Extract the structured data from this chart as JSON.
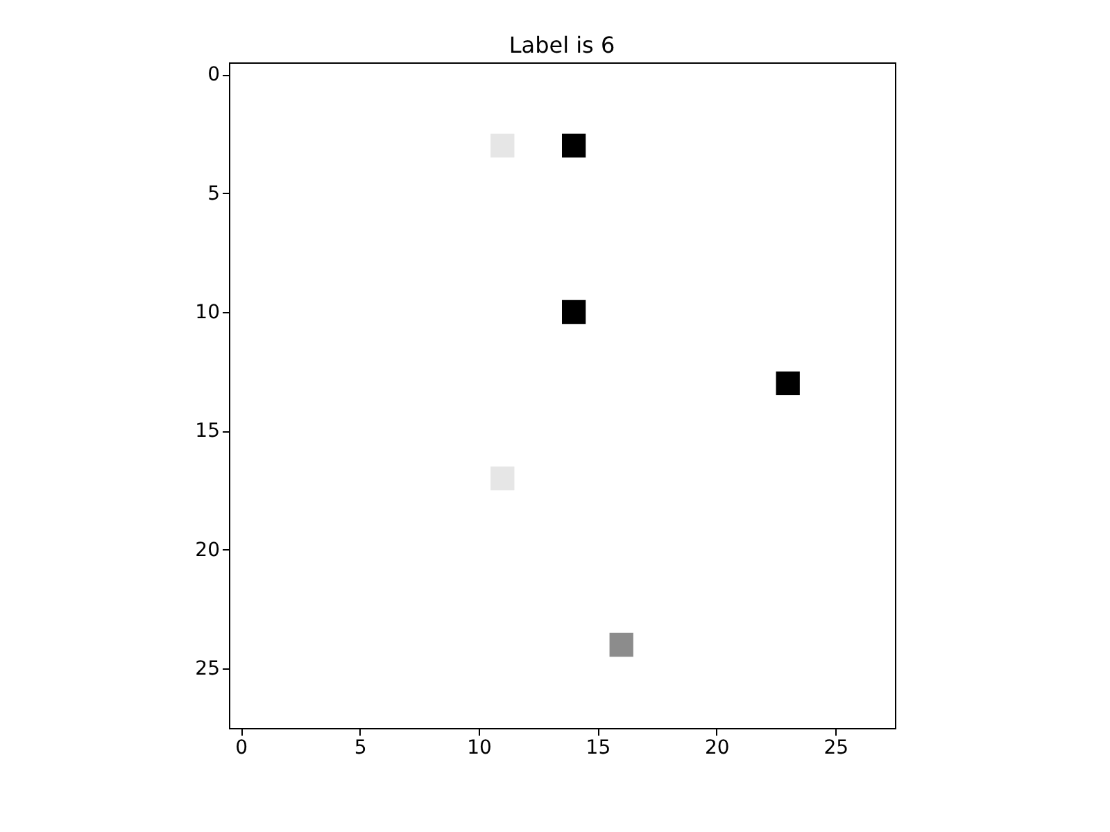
{
  "chart_data": {
    "type": "scatter",
    "title": "Label is 6",
    "x": [
      11,
      14,
      14,
      23,
      11,
      16
    ],
    "values": [
      3,
      3,
      10,
      13,
      17,
      24
    ],
    "colors": [
      "#e6e6e6",
      "#000000",
      "#000000",
      "#000000",
      "#e6e6e6",
      "#8c8c8c"
    ],
    "marker": "square",
    "xlim": [
      -0.5,
      27.5
    ],
    "ylim": [
      27.5,
      -0.5
    ],
    "xticks": [
      0,
      5,
      10,
      15,
      20,
      25
    ],
    "yticks": [
      0,
      5,
      10,
      15,
      20,
      25
    ],
    "grid": false
  }
}
